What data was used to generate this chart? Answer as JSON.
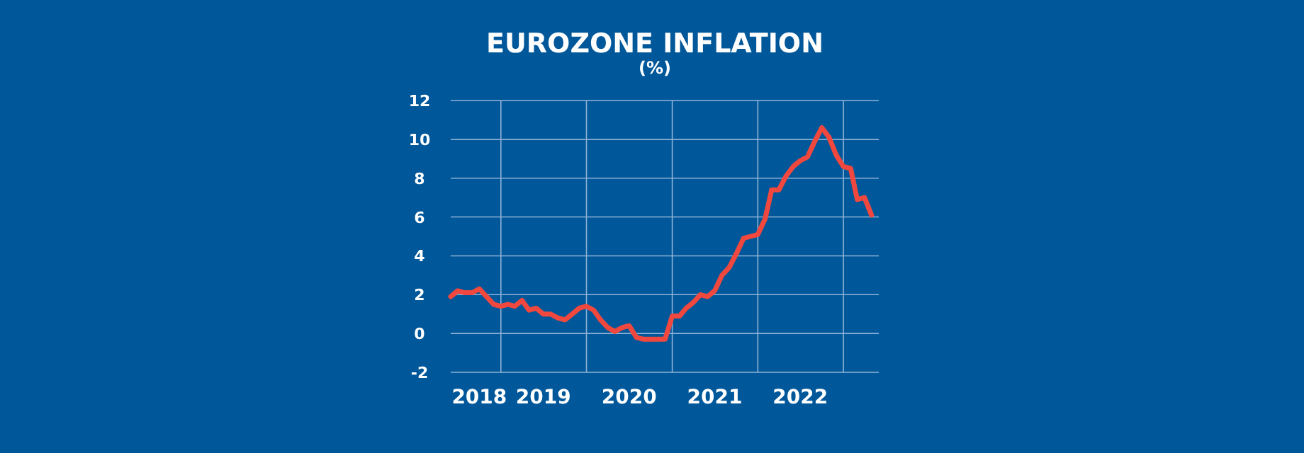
{
  "chart_data": {
    "type": "line",
    "title": "EUROZONE INFLATION",
    "subtitle": "(%)",
    "x": [
      "2018-06",
      "2018-07",
      "2018-08",
      "2018-09",
      "2018-10",
      "2018-11",
      "2018-12",
      "2019-01",
      "2019-02",
      "2019-03",
      "2019-04",
      "2019-05",
      "2019-06",
      "2019-07",
      "2019-08",
      "2019-09",
      "2019-10",
      "2019-11",
      "2019-12",
      "2020-01",
      "2020-02",
      "2020-03",
      "2020-04",
      "2020-05",
      "2020-06",
      "2020-07",
      "2020-08",
      "2020-09",
      "2020-10",
      "2020-11",
      "2020-12",
      "2021-01",
      "2021-02",
      "2021-03",
      "2021-04",
      "2021-05",
      "2021-06",
      "2021-07",
      "2021-08",
      "2021-09",
      "2021-10",
      "2021-11",
      "2021-12",
      "2022-01",
      "2022-02",
      "2022-03",
      "2022-04",
      "2022-05",
      "2022-06",
      "2022-07",
      "2022-08",
      "2022-09",
      "2022-10",
      "2022-11",
      "2022-12",
      "2023-01",
      "2023-02",
      "2023-03",
      "2023-04",
      "2023-05"
    ],
    "series": [
      {
        "color": "#f0483e",
        "values": [
          1.9,
          2.2,
          2.1,
          2.1,
          2.3,
          1.9,
          1.5,
          1.4,
          1.5,
          1.4,
          1.7,
          1.2,
          1.3,
          1.0,
          1.0,
          0.8,
          0.7,
          1.0,
          1.3,
          1.4,
          1.2,
          0.7,
          0.3,
          0.1,
          0.3,
          0.4,
          -0.2,
          -0.3,
          -0.3,
          -0.3,
          -0.3,
          0.9,
          0.9,
          1.3,
          1.6,
          2.0,
          1.9,
          2.2,
          3.0,
          3.4,
          4.1,
          4.9,
          5.0,
          5.1,
          5.9,
          7.4,
          7.4,
          8.1,
          8.6,
          8.9,
          9.1,
          9.9,
          10.6,
          10.1,
          9.2,
          8.6,
          8.5,
          6.9,
          7.0,
          6.1
        ]
      }
    ],
    "xlim": [
      "2018-06",
      "2023-06"
    ],
    "xticks": [
      {
        "value": "2018-10",
        "label": "2018"
      },
      {
        "value": "2019-07",
        "label": "2019"
      },
      {
        "value": "2020-07",
        "label": "2020"
      },
      {
        "value": "2021-07",
        "label": "2021"
      },
      {
        "value": "2022-07",
        "label": "2022"
      },
      {
        "value": "2019-01",
        "label": null
      },
      {
        "value": "2020-01",
        "label": null
      },
      {
        "value": "2021-01",
        "label": null
      },
      {
        "value": "2022-01",
        "label": null
      },
      {
        "value": "2023-01",
        "label": null
      }
    ],
    "ylim": [
      -2,
      12
    ],
    "yticks": [
      -2,
      0,
      2,
      4,
      6,
      8,
      10,
      12
    ],
    "grid": true,
    "marker": "none",
    "line_style": "solid"
  }
}
